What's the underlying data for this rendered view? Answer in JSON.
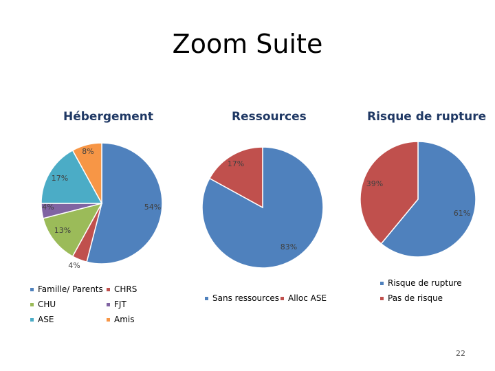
{
  "slide": {
    "title": "Zoom Suite",
    "page_number": "22"
  },
  "colors": {
    "blue": "#4f81bd",
    "red": "#c0504d",
    "green": "#9bbb59",
    "purple": "#8064a2",
    "cyan": "#4bacc6",
    "orange": "#f79646"
  },
  "chart_data": [
    {
      "type": "pie",
      "title": "Hébergement",
      "categories": [
        "Famille/ Parents",
        "CHRS",
        "CHU",
        "FJT",
        "ASE",
        "Amis"
      ],
      "values": [
        54,
        4,
        13,
        4,
        17,
        8
      ],
      "labels": [
        "54%",
        "4%",
        "13%",
        "4%",
        "17%",
        "8%"
      ],
      "colors": [
        "#4f81bd",
        "#c0504d",
        "#9bbb59",
        "#8064a2",
        "#4bacc6",
        "#f79646"
      ],
      "legend": "bottom"
    },
    {
      "type": "pie",
      "title": "Ressources",
      "categories": [
        "Sans ressources",
        "Alloc ASE"
      ],
      "values": [
        83,
        17
      ],
      "labels": [
        "83%",
        "17%"
      ],
      "colors": [
        "#4f81bd",
        "#c0504d"
      ],
      "legend": "bottom"
    },
    {
      "type": "pie",
      "title": "Risque de rupture",
      "categories": [
        "Risque de rupture",
        "Pas de risque"
      ],
      "values": [
        61,
        39
      ],
      "labels": [
        "61%",
        "39%"
      ],
      "colors": [
        "#4f81bd",
        "#c0504d"
      ],
      "legend": "bottom"
    }
  ]
}
